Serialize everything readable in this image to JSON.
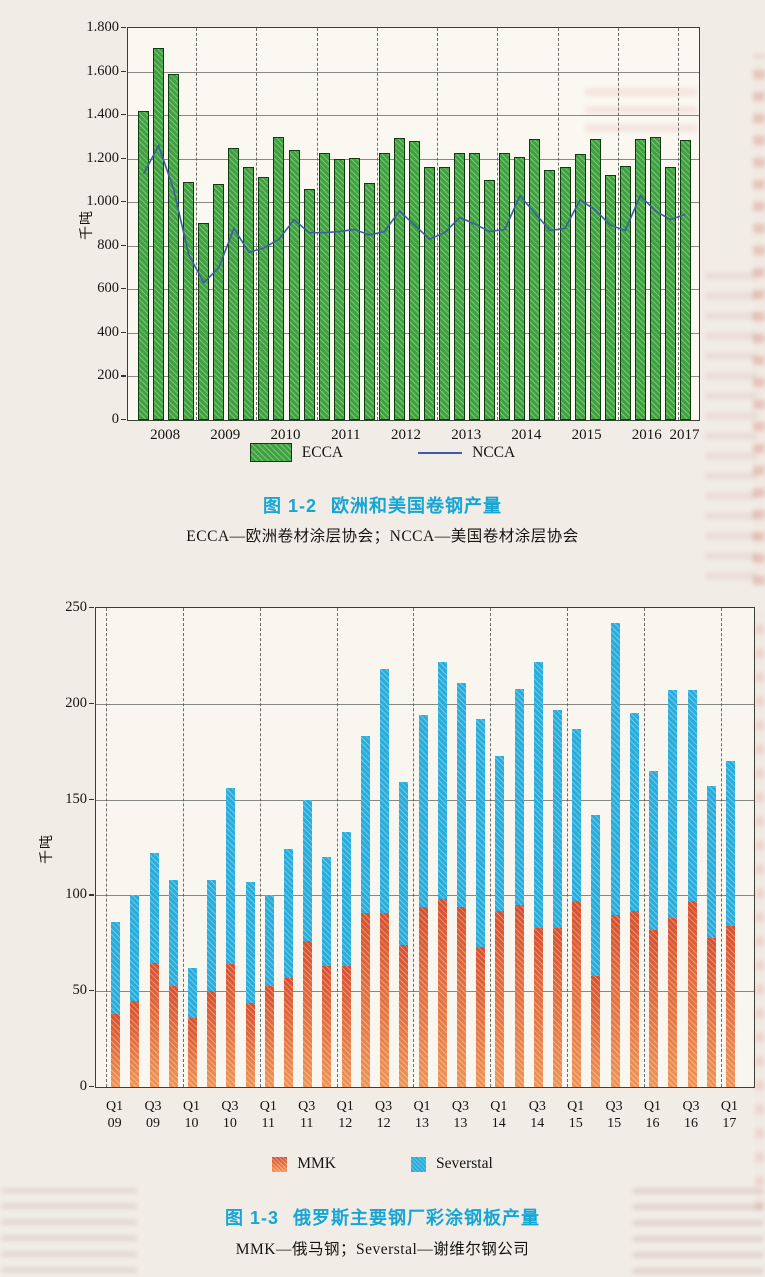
{
  "chart_data": [
    {
      "type": "bar",
      "fig_label": "图 1-2",
      "title": "欧洲和美国卷钢产量",
      "subtitle": "ECCA—欧洲卷材涂层协会；NCCA—美国卷材涂层协会",
      "ylabel": "千吨",
      "ylim": [
        0,
        1800
      ],
      "grid": true,
      "legend": [
        "ECCA",
        "NCCA"
      ],
      "legend_position": "bottom",
      "ytick_values": [
        0,
        200,
        400,
        600,
        800,
        1000,
        1200,
        1400,
        1600,
        1800
      ],
      "ytick_labels": [
        "0",
        "200",
        "400",
        "600",
        "800",
        "1.000",
        "1.200",
        "1.400",
        "1.600",
        "1.800"
      ],
      "year_labels": [
        "2008",
        "2009",
        "2010",
        "2011",
        "2012",
        "2013",
        "2014",
        "2015",
        "2016",
        "2017"
      ],
      "categories": [
        "2008 Q1",
        "2008 Q2",
        "2008 Q3",
        "2008 Q4",
        "2009 Q1",
        "2009 Q2",
        "2009 Q3",
        "2009 Q4",
        "2010 Q1",
        "2010 Q2",
        "2010 Q3",
        "2010 Q4",
        "2011 Q1",
        "2011 Q2",
        "2011 Q3",
        "2011 Q4",
        "2012 Q1",
        "2012 Q2",
        "2012 Q3",
        "2012 Q4",
        "2013 Q1",
        "2013 Q2",
        "2013 Q3",
        "2013 Q4",
        "2014 Q1",
        "2014 Q2",
        "2014 Q3",
        "2014 Q4",
        "2015 Q1",
        "2015 Q2",
        "2015 Q3",
        "2015 Q4",
        "2016 Q1",
        "2016 Q2",
        "2016 Q3",
        "2016 Q4",
        "2017 Q1"
      ],
      "series": [
        {
          "name": "ECCA",
          "type": "bar",
          "color": "#3ea23e",
          "css": "bar-ecca",
          "values": [
            1420,
            1710,
            1590,
            1095,
            905,
            1085,
            1250,
            1160,
            1115,
            1300,
            1240,
            1060,
            1225,
            1200,
            1205,
            1090,
            1225,
            1295,
            1280,
            1160,
            1160,
            1225,
            1225,
            1100,
            1225,
            1210,
            1290,
            1150,
            1160,
            1220,
            1290,
            1125,
            1165,
            1290,
            1300,
            1160,
            1285
          ]
        },
        {
          "name": "NCCA",
          "type": "line",
          "color": "#3b5fa0",
          "values": [
            1130,
            1260,
            1060,
            760,
            630,
            700,
            880,
            770,
            790,
            830,
            920,
            860,
            860,
            865,
            875,
            850,
            865,
            960,
            895,
            830,
            860,
            930,
            900,
            865,
            875,
            1030,
            950,
            870,
            880,
            1010,
            965,
            895,
            870,
            1030,
            960,
            920,
            945
          ]
        }
      ]
    },
    {
      "type": "bar",
      "stacked": true,
      "fig_label": "图 1-3",
      "title": "俄罗斯主要钢厂彩涂钢板产量",
      "subtitle": "MMK—俄马钢；Severstal—谢维尔钢公司",
      "ylabel": "千吨",
      "ylim": [
        0,
        250
      ],
      "grid": true,
      "legend": [
        "MMK",
        "Severstal"
      ],
      "legend_position": "bottom",
      "ytick_values": [
        0,
        50,
        100,
        150,
        200,
        250
      ],
      "ytick_labels": [
        "0",
        "50",
        "100",
        "150",
        "200",
        "250"
      ],
      "xtick_labels": [
        [
          "Q1",
          "09"
        ],
        [
          "Q3",
          "09"
        ],
        [
          "Q1",
          "10"
        ],
        [
          "Q3",
          "10"
        ],
        [
          "Q1",
          "11"
        ],
        [
          "Q3",
          "11"
        ],
        [
          "Q1",
          "12"
        ],
        [
          "Q3",
          "12"
        ],
        [
          "Q1",
          "13"
        ],
        [
          "Q3",
          "13"
        ],
        [
          "Q1",
          "14"
        ],
        [
          "Q3",
          "14"
        ],
        [
          "Q1",
          "15"
        ],
        [
          "Q3",
          "15"
        ],
        [
          "Q1",
          "16"
        ],
        [
          "Q3",
          "16"
        ],
        [
          "Q1",
          "17"
        ]
      ],
      "categories": [
        "Q1 09",
        "Q2 09",
        "Q3 09",
        "Q4 09",
        "Q1 10",
        "Q2 10",
        "Q3 10",
        "Q4 10",
        "Q1 11",
        "Q2 11",
        "Q3 11",
        "Q4 11",
        "Q1 12",
        "Q2 12",
        "Q3 12",
        "Q4 12",
        "Q1 13",
        "Q2 13",
        "Q3 13",
        "Q4 13",
        "Q1 14",
        "Q2 14",
        "Q3 14",
        "Q4 14",
        "Q1 15",
        "Q2 15",
        "Q3 15",
        "Q4 15",
        "Q1 16",
        "Q2 16",
        "Q3 16",
        "Q4 16",
        "Q1 17"
      ],
      "series": [
        {
          "name": "MMK",
          "type": "bar",
          "color": "#d8502e",
          "gradient": [
            "#d8502e",
            "#ef9455"
          ],
          "values": [
            38,
            45,
            65,
            53,
            36,
            50,
            64,
            44,
            53,
            57,
            76,
            63,
            63,
            91,
            91,
            74,
            94,
            98,
            94,
            73,
            92,
            95,
            83,
            83,
            97,
            58,
            90,
            92,
            82,
            88,
            97,
            78,
            84
          ]
        },
        {
          "name": "Severstal",
          "type": "bar",
          "color": "#29addc",
          "values": [
            48,
            55,
            57,
            55,
            26,
            58,
            92,
            63,
            47,
            67,
            74,
            57,
            70,
            92,
            127,
            85,
            100,
            124,
            117,
            119,
            81,
            113,
            139,
            114,
            90,
            84,
            152,
            103,
            83,
            119,
            110,
            79,
            86
          ]
        }
      ]
    }
  ]
}
